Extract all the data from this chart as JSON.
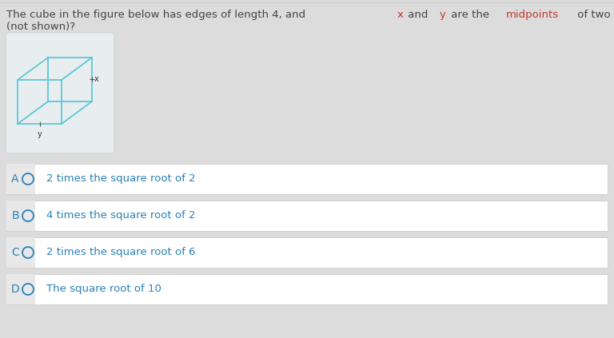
{
  "background_color": "#dcdcdc",
  "question_color": "#444444",
  "highlight_color": "#c0392b",
  "cube_color": "#5bc8d8",
  "cube_panel_bg": "#e8eef0",
  "cube_panel_border": "#cccccc",
  "options": [
    {
      "label": "A",
      "text": "2 times the square root of 2",
      "text_color": "#2980b9"
    },
    {
      "label": "B",
      "text": "4 times the square root of 2",
      "text_color": "#2980b9"
    },
    {
      "label": "C",
      "text": "2 times the square root of 6",
      "text_color": "#2980b9"
    },
    {
      "label": "D",
      "text": "The square root of 10",
      "text_color": "#2980b9"
    }
  ],
  "option_box_color": "#ffffff",
  "option_border_color": "#cccccc",
  "option_label_color": "#2980b9",
  "option_circle_color": "#2980b9",
  "option_label_bg": "#e8e8e8",
  "separator_color": "#cccccc",
  "q_fontsize": 9.5,
  "opt_fontsize": 9.5,
  "opt_label_fontsize": 10
}
